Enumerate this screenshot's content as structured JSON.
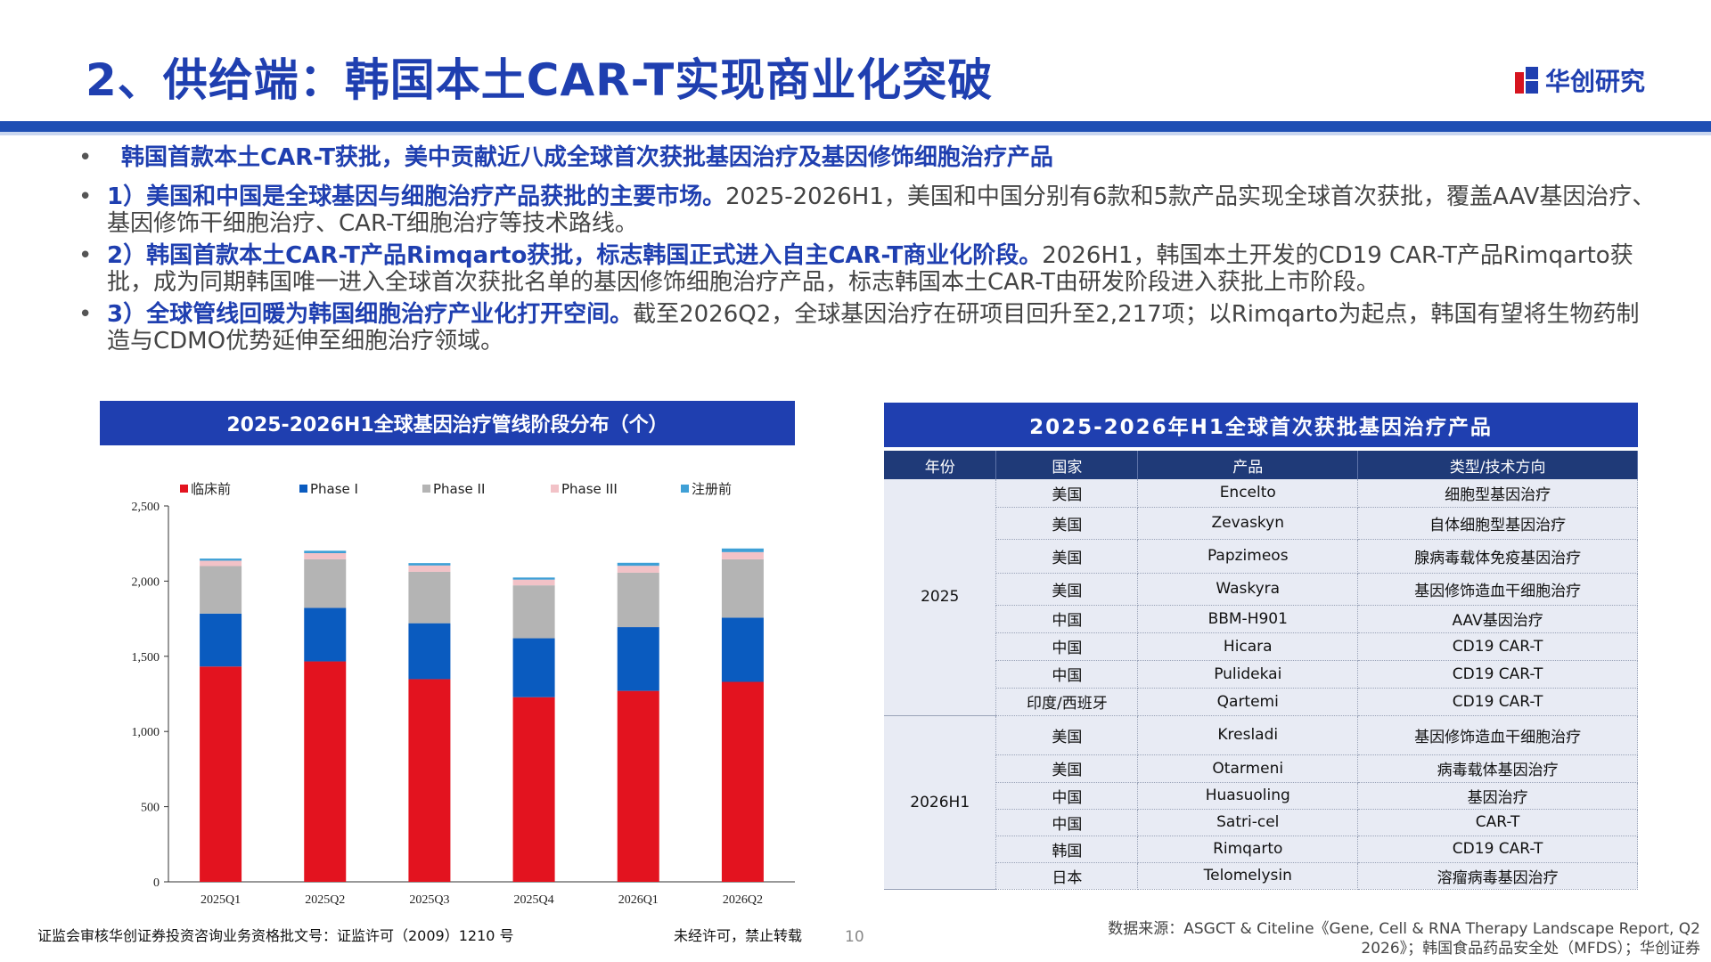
{
  "header": {
    "title": "2、供给端：韩国本土CAR-T实现商业化突破",
    "logo_text": "华创研究",
    "logo_icon": "huachuang-logo-icon"
  },
  "bullets": {
    "lead": "韩国首款本土CAR-T获批，美中贡献近八成全球首次获批基因治疗及基因修饰细胞治疗产品",
    "items": [
      {
        "bold": "1）美国和中国是全球基因与细胞治疗产品获批的主要市场。",
        "text": "2025-2026H1，美国和中国分别有6款和5款产品实现全球首次获批，覆盖AAV基因治疗、基因修饰干细胞治疗、CAR-T细胞治疗等技术路线。"
      },
      {
        "bold": "2）韩国首款本土CAR-T产品Rimqarto获批，标志韩国正式进入自主CAR-T商业化阶段。",
        "text": "2026H1，韩国本土开发的CD19 CAR-T产品Rimqarto获批，成为同期韩国唯一进入全球首次获批名单的基因修饰细胞治疗产品，标志韩国本土CAR-T由研发阶段进入获批上市阶段。"
      },
      {
        "bold": "3）全球管线回暖为韩国细胞治疗产业化打开空间。",
        "text": "截至2026Q2，全球基因治疗在研项目回升至2,217项；以Rimqarto为起点，韩国有望将生物药制造与CDMO优势延伸至细胞治疗领域。"
      }
    ]
  },
  "chart_data": {
    "type": "bar",
    "stacked": true,
    "title": "2025-2026H1全球基因治疗管线阶段分布（个）",
    "categories": [
      "2025Q1",
      "2025Q2",
      "2025Q3",
      "2025Q4",
      "2026Q1",
      "2026Q2"
    ],
    "series": [
      {
        "name": "临床前",
        "color": "#e3131f",
        "values": [
          1432,
          1466,
          1348,
          1228,
          1270,
          1330
        ]
      },
      {
        "name": "Phase I",
        "color": "#0a5bbf",
        "values": [
          352,
          356,
          372,
          392,
          424,
          427
        ]
      },
      {
        "name": "Phase II",
        "color": "#b4b4b4",
        "values": [
          316,
          324,
          342,
          352,
          362,
          388
        ]
      },
      {
        "name": "Phase III",
        "color": "#f2c2c7",
        "values": [
          36,
          40,
          42,
          38,
          46,
          48
        ]
      },
      {
        "name": "注册前",
        "color": "#3fa0d6",
        "values": [
          14,
          16,
          16,
          14,
          20,
          24
        ]
      }
    ],
    "ylim": [
      0,
      2500
    ],
    "yticks": [
      "0",
      "500",
      "1,000",
      "1,500",
      "2,000",
      "2,500"
    ],
    "legend": "top",
    "grid": false
  },
  "table": {
    "title": "2025-2026年H1全球首次获批基因治疗产品",
    "columns": [
      "年份",
      "国家",
      "产品",
      "类型/技术方向"
    ],
    "groups": [
      {
        "year": "2025",
        "rows": [
          {
            "country": "美国",
            "product": "Encelto",
            "type": "细胞型基因治疗",
            "h": 31
          },
          {
            "country": "美国",
            "product": "Zevaskyn",
            "type": "自体细胞型基因治疗",
            "h": 36
          },
          {
            "country": "美国",
            "product": "Papzimeos",
            "type": "腺病毒载体免疫基因治疗",
            "h": 38
          },
          {
            "country": "美国",
            "product": "Waskyra",
            "type": "基因修饰造血干细胞治疗",
            "h": 36
          },
          {
            "country": "中国",
            "product": "BBM-H901",
            "type": "AAV基因治疗",
            "h": 31
          },
          {
            "country": "中国",
            "product": "Hicara",
            "type": "CD19 CAR-T",
            "h": 31
          },
          {
            "country": "中国",
            "product": "Pulidekai",
            "type": "CD19 CAR-T",
            "h": 31
          },
          {
            "country": "印度/西班牙",
            "product": "Qartemi",
            "type": "CD19 CAR-T",
            "h": 31
          }
        ]
      },
      {
        "year": "2026H1",
        "rows": [
          {
            "country": "美国",
            "product": "Kresladi",
            "type": "基因修饰造血干细胞治疗",
            "h": 44
          },
          {
            "country": "美国",
            "product": "Otarmeni",
            "type": "病毒载体基因治疗",
            "h": 31
          },
          {
            "country": "中国",
            "product": "Huasuoling",
            "type": "基因治疗",
            "h": 30
          },
          {
            "country": "中国",
            "product": "Satri-cel",
            "type": "CAR-T",
            "h": 30
          },
          {
            "country": "韩国",
            "product": "Rimqarto",
            "type": "CD19 CAR-T",
            "h": 30
          },
          {
            "country": "日本",
            "product": "Telomelysin",
            "type": "溶瘤病毒基因治疗",
            "h": 30
          }
        ]
      }
    ]
  },
  "footer": {
    "license": "证监会审核华创证券投资咨询业务资格批文号：证监许可（2009）1210 号",
    "notice": "未经许可，禁止转载",
    "page": "10",
    "source": "数据来源：ASGCT & Citeline《Gene, Cell & RNA Therapy Landscape Report, Q2 2026》；韩国食品药品安全处（MFDS）；华创证券"
  }
}
